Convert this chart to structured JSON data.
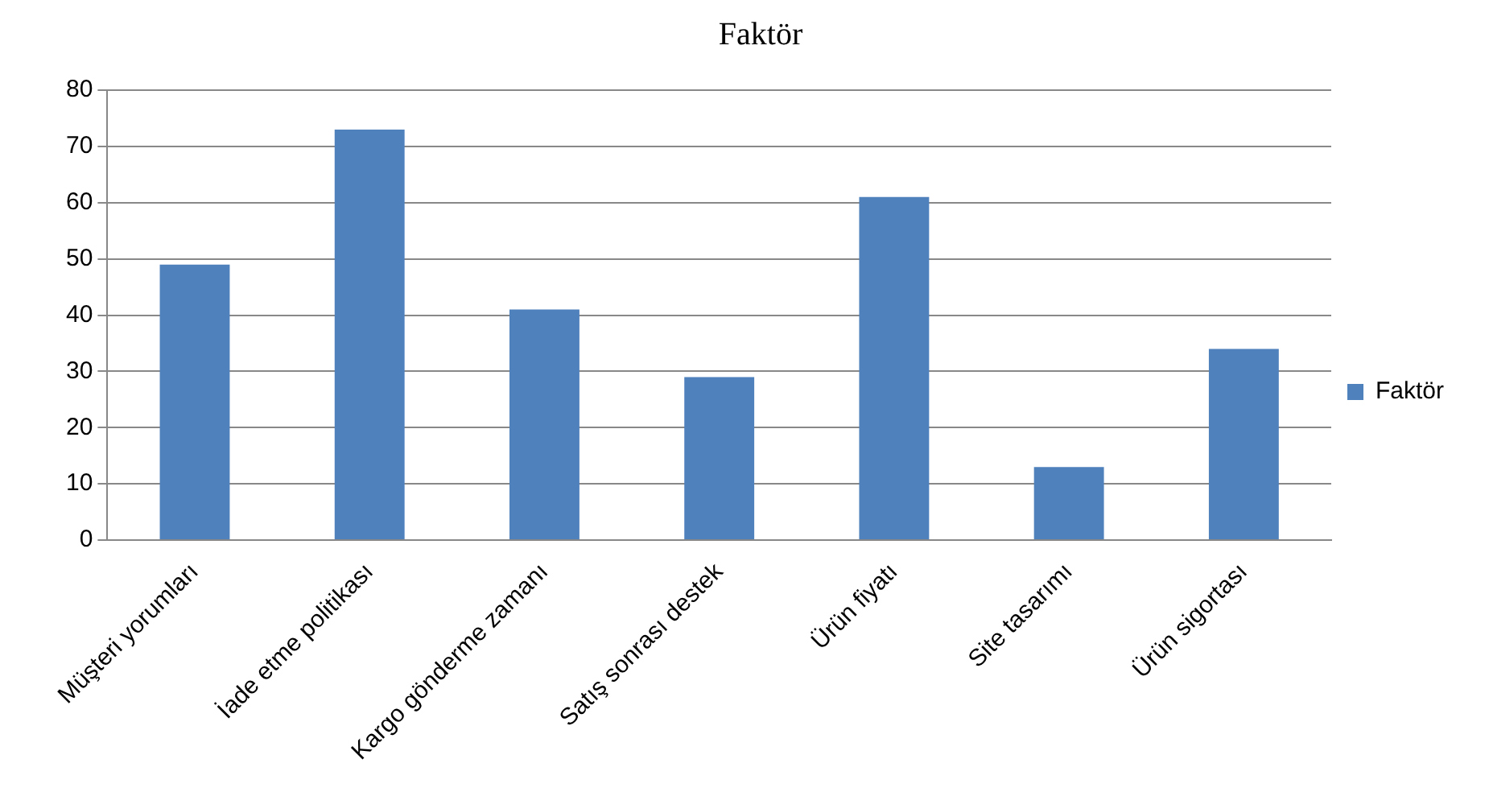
{
  "chart_data": {
    "type": "bar",
    "title": "Faktör",
    "categories": [
      "Müşteri yorumları",
      "İade etme politikası",
      "Kargo gönderme zamanı",
      "Satış sonrası destek",
      "Ürün fiyatı",
      "Site tasarımı",
      "Ürün sigortası"
    ],
    "series": [
      {
        "name": "Faktör",
        "color": "#4f81bd",
        "values": [
          49,
          73,
          41,
          29,
          61,
          13,
          34
        ]
      }
    ],
    "ylim": [
      0,
      80
    ],
    "yticks": [
      0,
      10,
      20,
      30,
      40,
      50,
      60,
      70,
      80
    ],
    "grid": "y",
    "legend": "right"
  }
}
